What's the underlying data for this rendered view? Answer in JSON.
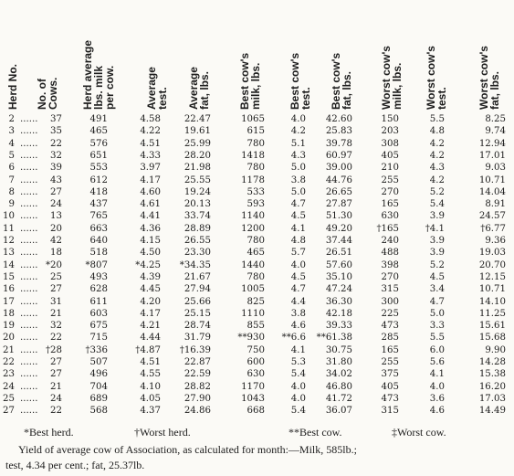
{
  "table": {
    "headers": [
      "Herd No.",
      "No. of\nCows.",
      "Herd average\nlbs. milk\nper cow.",
      "Average\ntest.",
      "Average\nfat, lbs.",
      "Best cow's\nmilk, lbs.",
      "Best cow's\ntest.",
      "Best cow's\nfat, lbs.",
      "Worst cow's\nmilk, lbs.",
      "Worst cow's\ntest.",
      "Worst cow's\nfat, lbs."
    ],
    "rows": [
      [
        "2",
        "37",
        "491",
        "4.58",
        "22.47",
        "1065",
        "4.0",
        "42.60",
        "150",
        "5.5",
        "8.25"
      ],
      [
        "3",
        "35",
        "465",
        "4.22",
        "19.61",
        "615",
        "4.2",
        "25.83",
        "203",
        "4.8",
        "9.74"
      ],
      [
        "4",
        "22",
        "576",
        "4.51",
        "25.99",
        "780",
        "5.1",
        "39.78",
        "308",
        "4.2",
        "12.94"
      ],
      [
        "5",
        "32",
        "651",
        "4.33",
        "28.20",
        "1418",
        "4.3",
        "60.97",
        "405",
        "4.2",
        "17.01"
      ],
      [
        "6",
        "39",
        "553",
        "3.97",
        "21.98",
        "780",
        "5.0",
        "39.00",
        "210",
        "4.3",
        "9.03"
      ],
      [
        "7",
        "43",
        "612",
        "4.17",
        "25.55",
        "1178",
        "3.8",
        "44.76",
        "255",
        "4.2",
        "10.71"
      ],
      [
        "8",
        "27",
        "418",
        "4.60",
        "19.24",
        "533",
        "5.0",
        "26.65",
        "270",
        "5.2",
        "14.04"
      ],
      [
        "9",
        "24",
        "437",
        "4.61",
        "20.13",
        "593",
        "4.7",
        "27.87",
        "165",
        "5.4",
        "8.91"
      ],
      [
        "10",
        "13",
        "765",
        "4.41",
        "33.74",
        "1140",
        "4.5",
        "51.30",
        "630",
        "3.9",
        "24.57"
      ],
      [
        "11",
        "20",
        "663",
        "4.36",
        "28.89",
        "1200",
        "4.1",
        "49.20",
        "†165",
        "†4.1",
        "†6.77"
      ],
      [
        "12",
        "42",
        "640",
        "4.15",
        "26.55",
        "780",
        "4.8",
        "37.44",
        "240",
        "3.9",
        "9.36"
      ],
      [
        "13",
        "18",
        "518",
        "4.50",
        "23.30",
        "465",
        "5.7",
        "26.51",
        "488",
        "3.9",
        "19.03"
      ],
      [
        "14",
        "*20",
        "*807",
        "*4.25",
        "*34.35",
        "1440",
        "4.0",
        "57.60",
        "398",
        "5.2",
        "20.70"
      ],
      [
        "15",
        "25",
        "493",
        "4.39",
        "21.67",
        "780",
        "4.5",
        "35.10",
        "270",
        "4.5",
        "12.15"
      ],
      [
        "16",
        "27",
        "628",
        "4.45",
        "27.94",
        "1005",
        "4.7",
        "47.24",
        "315",
        "3.4",
        "10.71"
      ],
      [
        "17",
        "31",
        "611",
        "4.20",
        "25.66",
        "825",
        "4.4",
        "36.30",
        "300",
        "4.7",
        "14.10"
      ],
      [
        "18",
        "21",
        "603",
        "4.17",
        "25.15",
        "1110",
        "3.8",
        "42.18",
        "225",
        "5.0",
        "11.25"
      ],
      [
        "19",
        "32",
        "675",
        "4.21",
        "28.74",
        "855",
        "4.6",
        "39.33",
        "473",
        "3.3",
        "15.61"
      ],
      [
        "20",
        "22",
        "715",
        "4.44",
        "31.79",
        "**930",
        "**6.6",
        "**61.38",
        "285",
        "5.5",
        "15.68"
      ],
      [
        "21",
        "†28",
        "†336",
        "†4.87",
        "†16.39",
        "750",
        "4.1",
        "30.75",
        "165",
        "6.0",
        "9.90"
      ],
      [
        "22",
        "27",
        "507",
        "4.51",
        "22.87",
        "600",
        "5.3",
        "31.80",
        "255",
        "5.6",
        "14.28"
      ],
      [
        "23",
        "27",
        "496",
        "4.55",
        "22.59",
        "630",
        "5.4",
        "34.02",
        "375",
        "4.1",
        "15.38"
      ],
      [
        "24",
        "21",
        "704",
        "4.10",
        "28.82",
        "1170",
        "4.0",
        "46.80",
        "405",
        "4.0",
        "16.20"
      ],
      [
        "25",
        "24",
        "689",
        "4.05",
        "27.90",
        "1043",
        "4.0",
        "41.72",
        "473",
        "3.6",
        "17.03"
      ],
      [
        "27",
        "22",
        "568",
        "4.37",
        "24.86",
        "668",
        "5.4",
        "36.07",
        "315",
        "4.6",
        "14.49"
      ]
    ],
    "leader": "......"
  },
  "legend": {
    "best_herd": "*Best herd.",
    "worst_herd": "†Worst herd.",
    "best_cow": "**Best cow.",
    "worst_cow": "‡Worst cow."
  },
  "footer": {
    "line1": "Yield of average cow of Association, as calculated for month:—Milk, 585lb.;",
    "line2": "test, 4.34 per cent.; fat, 25.37lb."
  }
}
